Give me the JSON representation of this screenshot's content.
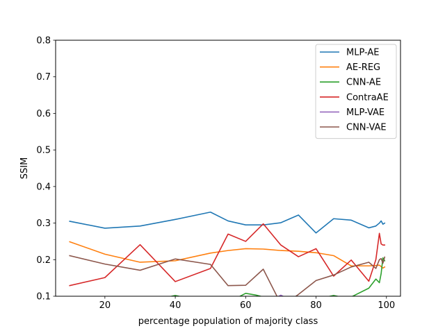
{
  "chart_data": {
    "type": "line",
    "title": "",
    "xlabel": "percentage population of majority class",
    "ylabel": "SSIM",
    "xlim": [
      6,
      104
    ],
    "ylim": [
      0.1,
      0.8
    ],
    "xticks": [
      20,
      40,
      60,
      80,
      100
    ],
    "xtick_labels": [
      "20",
      "40",
      "60",
      "80",
      "100"
    ],
    "yticks": [
      0.1,
      0.2,
      0.3,
      0.4,
      0.5,
      0.6,
      0.7,
      0.8
    ],
    "ytick_labels": [
      "0.1",
      "0.2",
      "0.3",
      "0.4",
      "0.5",
      "0.6",
      "0.7",
      "0.8"
    ],
    "grid": false,
    "legend_position": "top-right",
    "series": [
      {
        "name": "MLP-AE",
        "color": "#1f77b4",
        "x": [
          10,
          20,
          30,
          40,
          50,
          55,
          60,
          65,
          70,
          75,
          80,
          85,
          90,
          95,
          97,
          98,
          98.5,
          99,
          99.5
        ],
        "y": [
          0.305,
          0.286,
          0.292,
          0.31,
          0.33,
          0.306,
          0.295,
          0.295,
          0.301,
          0.322,
          0.273,
          0.312,
          0.308,
          0.287,
          0.292,
          0.3,
          0.306,
          0.297,
          0.3
        ]
      },
      {
        "name": "AE-REG",
        "color": "#ff7f0e",
        "x": [
          10,
          20,
          30,
          40,
          50,
          55,
          60,
          65,
          70,
          75,
          80,
          85,
          90,
          95,
          97,
          98,
          98.5,
          99,
          99.5
        ],
        "y": [
          0.249,
          0.215,
          0.193,
          0.197,
          0.218,
          0.225,
          0.23,
          0.229,
          0.225,
          0.223,
          0.219,
          0.211,
          0.183,
          0.183,
          0.184,
          0.185,
          0.181,
          0.177,
          0.18
        ]
      },
      {
        "name": "CNN-AE",
        "color": "#2ca02c",
        "x": [
          38,
          40,
          42,
          58,
          60,
          63,
          65,
          78,
          80,
          83,
          85,
          87,
          90,
          95,
          97,
          98,
          98.5,
          99,
          99.5
        ],
        "y": [
          0.098,
          0.102,
          0.098,
          0.098,
          0.108,
          0.103,
          0.098,
          0.098,
          0.099,
          0.098,
          0.102,
          0.098,
          0.098,
          0.122,
          0.147,
          0.137,
          0.162,
          0.205,
          0.197
        ]
      },
      {
        "name": "ContraAE",
        "color": "#d62728",
        "x": [
          10,
          20,
          30,
          40,
          50,
          55,
          60,
          65,
          70,
          75,
          80,
          85,
          90,
          95,
          97,
          98,
          98.5,
          99,
          99.5
        ],
        "y": [
          0.129,
          0.151,
          0.241,
          0.14,
          0.176,
          0.27,
          0.25,
          0.298,
          0.24,
          0.208,
          0.23,
          0.155,
          0.199,
          0.141,
          0.2,
          0.272,
          0.243,
          0.24,
          0.24
        ]
      },
      {
        "name": "MLP-VAE",
        "color": "#9467bd",
        "x": [
          69,
          70,
          71
        ],
        "y": [
          0.098,
          0.103,
          0.098
        ]
      },
      {
        "name": "CNN-VAE",
        "color": "#8c564b",
        "x": [
          10,
          20,
          30,
          40,
          50,
          55,
          60,
          65,
          69,
          70,
          74,
          75,
          80,
          85,
          90,
          95,
          97,
          98,
          98.5,
          99,
          99.5
        ],
        "y": [
          0.211,
          0.188,
          0.171,
          0.202,
          0.187,
          0.129,
          0.13,
          0.174,
          0.098,
          0.098,
          0.098,
          0.105,
          0.143,
          0.158,
          0.18,
          0.193,
          0.176,
          0.2,
          0.203,
          0.19,
          0.207
        ]
      }
    ]
  }
}
